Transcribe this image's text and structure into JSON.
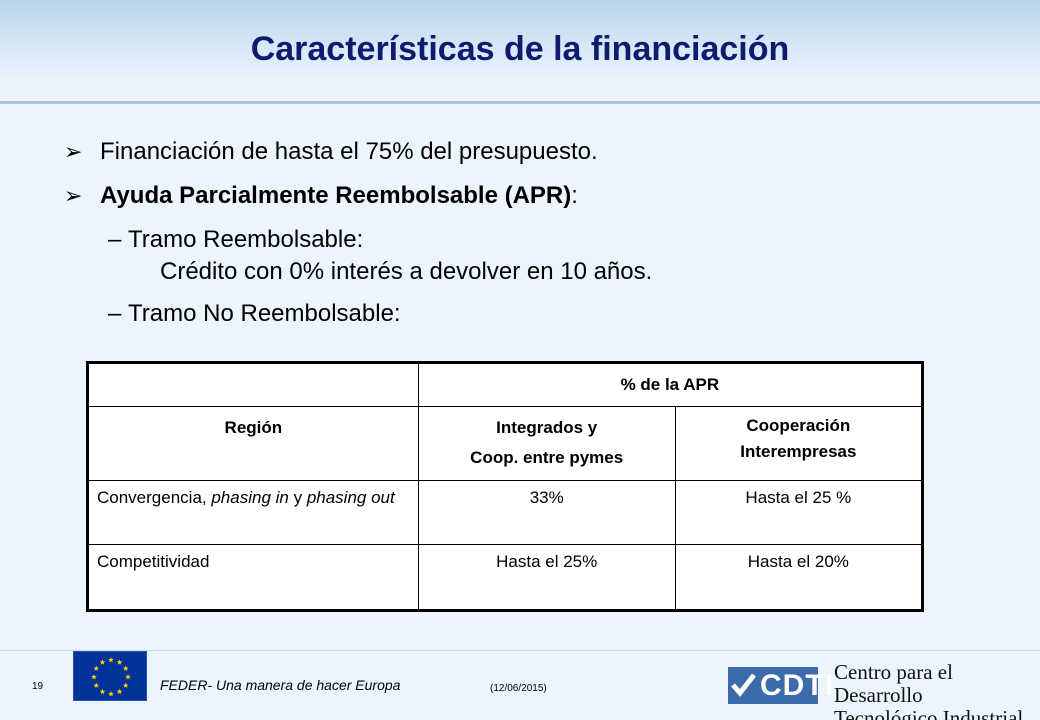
{
  "slide": {
    "title": "Características de la financiación"
  },
  "bullets": [
    {
      "text": "Financiación de hasta el 75% del presupuesto."
    },
    {
      "bold_text": "Ayuda Parcialmente Reembolsable (APR)",
      "suffix": ":"
    }
  ],
  "subitems": [
    {
      "label": "Tramo Reembolsable:",
      "detail": "Crédito con 0% interés a devolver en 10 años."
    },
    {
      "label": "Tramo No Reembolsable:"
    }
  ],
  "symbols": {
    "arrow": "➢",
    "dash": "–"
  },
  "table": {
    "group_header": "% de la APR",
    "headers": {
      "region": "Región",
      "col1_line1": "Integrados y",
      "col1_line2": "Coop. entre pymes",
      "col2_line1": "Cooperación",
      "col2_line2": "Interempresas"
    },
    "rows": [
      {
        "region_parts": [
          "Convergencia, ",
          "phasing in",
          " y ",
          "phasing out"
        ],
        "integrados": "33%",
        "cooperacion": "Hasta el 25 %"
      },
      {
        "region": "Competitividad",
        "integrados": "Hasta el 25%",
        "cooperacion": "Hasta el 20%"
      }
    ]
  },
  "footer": {
    "page_number": "19",
    "feder": "FEDER- Una manera de hacer Europa",
    "date": "(12/06/2015)",
    "cdti_logo": "CDTI",
    "org_line1": "Centro para el Desarrollo",
    "org_line2": "Tecnológico Industrial"
  },
  "colors": {
    "title": "#0f1b6e",
    "eu_blue": "#003399",
    "eu_star": "#ffcc00",
    "cdti_blue": "#3b6bab"
  }
}
